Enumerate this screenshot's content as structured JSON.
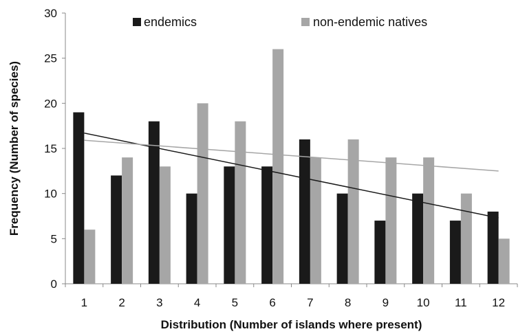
{
  "chart_data": {
    "type": "bar",
    "xlabel": "Distribution (Number of islands where present)",
    "ylabel": "Frequency (Number of species)",
    "categories": [
      "1",
      "2",
      "3",
      "4",
      "5",
      "6",
      "7",
      "8",
      "9",
      "10",
      "11",
      "12"
    ],
    "series": [
      {
        "name": "endemics",
        "color": "#1a1a1a",
        "values": [
          19,
          12,
          18,
          10,
          13,
          13,
          16,
          10,
          7,
          10,
          7,
          8
        ]
      },
      {
        "name": "non-endemic natives",
        "color": "#a6a6a6",
        "values": [
          6,
          14,
          13,
          20,
          18,
          26,
          14,
          16,
          14,
          14,
          10,
          5
        ]
      }
    ],
    "trendlines": [
      {
        "series": "endemics",
        "color": "#1a1a1a",
        "start": [
          1,
          16.7
        ],
        "end": [
          12,
          7.3
        ]
      },
      {
        "series": "non-endemic natives",
        "color": "#a6a6a6",
        "start": [
          1,
          15.9
        ],
        "end": [
          12,
          12.5
        ]
      }
    ],
    "ylim": [
      0,
      30
    ],
    "yticks": [
      0,
      5,
      10,
      15,
      20,
      25,
      30
    ],
    "grid": false,
    "legend_position": "top"
  }
}
